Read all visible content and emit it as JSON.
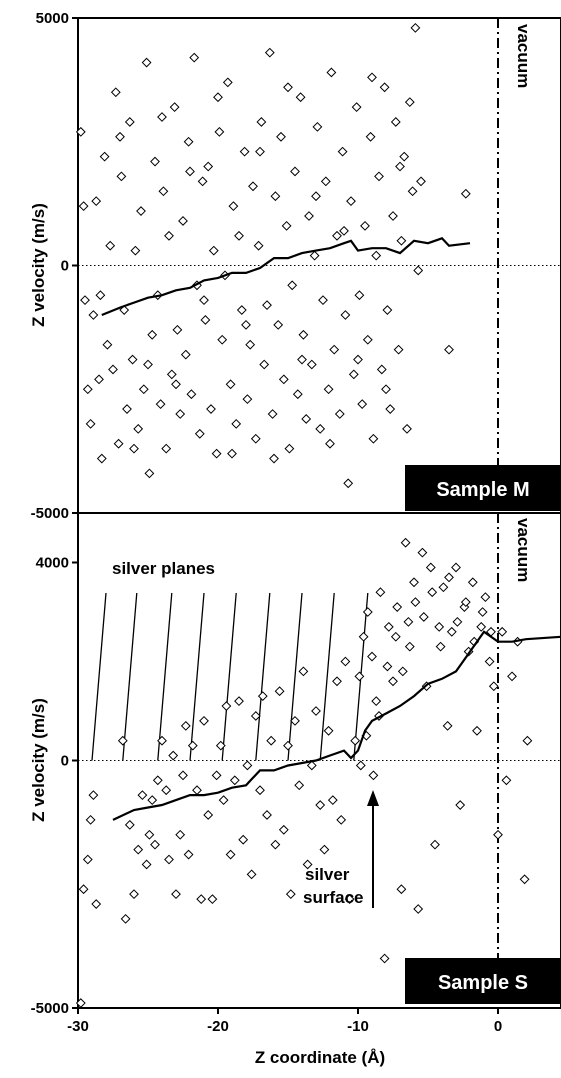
{
  "chart_data": [
    {
      "id": "sample-m",
      "type": "scatter",
      "xlabel": "",
      "ylabel": "Z velocity (m/s)",
      "xlim": [
        -30,
        4.5
      ],
      "ylim": [
        -5000,
        5000
      ],
      "yticks": [
        5000,
        0,
        -5000
      ],
      "ytick_labels": [
        "5000",
        "0",
        "-5000"
      ],
      "badge": "Sample M",
      "vacuum_label": "vacuum",
      "vacuum_x": 0,
      "scatter_points": [
        [
          -29.8,
          2700
        ],
        [
          -29.6,
          1200
        ],
        [
          -29.5,
          -700
        ],
        [
          -29.3,
          -2500
        ],
        [
          -29.1,
          -3200
        ],
        [
          -28.9,
          -1000
        ],
        [
          -28.7,
          1300
        ],
        [
          -28.5,
          -2300
        ],
        [
          -28.3,
          -3900
        ],
        [
          -28.1,
          2200
        ],
        [
          -27.9,
          -1600
        ],
        [
          -27.7,
          400
        ],
        [
          -27.5,
          -2100
        ],
        [
          -27.3,
          3500
        ],
        [
          -27.1,
          -3600
        ],
        [
          -26.9,
          1800
        ],
        [
          -26.7,
          -900
        ],
        [
          -26.5,
          -2900
        ],
        [
          -26.3,
          2900
        ],
        [
          -26.1,
          -1900
        ],
        [
          -25.9,
          300
        ],
        [
          -25.7,
          -3300
        ],
        [
          -25.5,
          1100
        ],
        [
          -25.3,
          -2500
        ],
        [
          -25.1,
          4100
        ],
        [
          -24.9,
          -4200
        ],
        [
          -24.7,
          -1400
        ],
        [
          -24.5,
          2100
        ],
        [
          -24.3,
          -600
        ],
        [
          -24.1,
          -2800
        ],
        [
          -23.9,
          1500
        ],
        [
          -23.7,
          -3700
        ],
        [
          -23.5,
          600
        ],
        [
          -23.3,
          -2200
        ],
        [
          -23.1,
          3200
        ],
        [
          -22.9,
          -1300
        ],
        [
          -22.7,
          -3000
        ],
        [
          -22.5,
          900
        ],
        [
          -22.3,
          -1800
        ],
        [
          -22.1,
          2500
        ],
        [
          -21.9,
          -2600
        ],
        [
          -21.7,
          4200
        ],
        [
          -21.5,
          -400
        ],
        [
          -21.3,
          -3400
        ],
        [
          -21.1,
          1700
        ],
        [
          -20.9,
          -1100
        ],
        [
          -20.7,
          2000
        ],
        [
          -20.5,
          -2900
        ],
        [
          -20.3,
          300
        ],
        [
          -20.1,
          -3800
        ],
        [
          -19.9,
          2700
        ],
        [
          -19.7,
          -1500
        ],
        [
          -19.5,
          -200
        ],
        [
          -19.3,
          3700
        ],
        [
          -19.1,
          -2400
        ],
        [
          -18.9,
          1200
        ],
        [
          -18.7,
          -3200
        ],
        [
          -18.5,
          600
        ],
        [
          -18.3,
          -900
        ],
        [
          -18.1,
          2300
        ],
        [
          -17.9,
          -2700
        ],
        [
          -17.7,
          -1600
        ],
        [
          -17.5,
          1600
        ],
        [
          -17.3,
          -3500
        ],
        [
          -17.1,
          400
        ],
        [
          -16.9,
          2900
        ],
        [
          -16.7,
          -2000
        ],
        [
          -16.5,
          -800
        ],
        [
          -16.3,
          4300
        ],
        [
          -16.1,
          -3000
        ],
        [
          -15.9,
          1400
        ],
        [
          -15.7,
          -1200
        ],
        [
          -15.5,
          2600
        ],
        [
          -15.3,
          -2300
        ],
        [
          -15.1,
          800
        ],
        [
          -14.9,
          -3700
        ],
        [
          -14.7,
          -400
        ],
        [
          -14.5,
          1900
        ],
        [
          -14.3,
          -2600
        ],
        [
          -14.1,
          3400
        ],
        [
          -13.9,
          -1400
        ],
        [
          -13.7,
          -3100
        ],
        [
          -13.5,
          1000
        ],
        [
          -13.3,
          -2000
        ],
        [
          -13.1,
          200
        ],
        [
          -12.9,
          2800
        ],
        [
          -12.7,
          -3300
        ],
        [
          -12.5,
          -700
        ],
        [
          -12.3,
          1700
        ],
        [
          -12.1,
          -2500
        ],
        [
          -11.9,
          3900
        ],
        [
          -11.7,
          -1700
        ],
        [
          -11.5,
          600
        ],
        [
          -11.3,
          -3000
        ],
        [
          -11.1,
          2300
        ],
        [
          -10.9,
          -1000
        ],
        [
          -10.7,
          -4400
        ],
        [
          -10.5,
          1300
        ],
        [
          -10.3,
          -2200
        ],
        [
          -10.1,
          3200
        ],
        [
          -9.9,
          -600
        ],
        [
          -9.7,
          -2800
        ],
        [
          -9.5,
          800
        ],
        [
          -9.3,
          -1500
        ],
        [
          -9.1,
          2600
        ],
        [
          -8.9,
          -3500
        ],
        [
          -8.7,
          200
        ],
        [
          -8.5,
          1800
        ],
        [
          -8.3,
          -2100
        ],
        [
          -8.1,
          3600
        ],
        [
          -7.9,
          -900
        ],
        [
          -7.7,
          -2900
        ],
        [
          -7.5,
          1000
        ],
        [
          -7.3,
          2900
        ],
        [
          -7.1,
          -1700
        ],
        [
          -6.9,
          500
        ],
        [
          -6.7,
          2200
        ],
        [
          -6.5,
          -3300
        ],
        [
          -6.3,
          3300
        ],
        [
          -6.1,
          1500
        ],
        [
          -5.9,
          4800
        ],
        [
          -5.7,
          -100
        ],
        [
          -5.5,
          1700
        ],
        [
          -3.5,
          -1700
        ],
        [
          -2.3,
          1450
        ],
        [
          -28.4,
          -600
        ],
        [
          -27.0,
          2600
        ],
        [
          -26.0,
          -3700
        ],
        [
          -25.0,
          -2000
        ],
        [
          -24.0,
          3000
        ],
        [
          -23.0,
          -2400
        ],
        [
          -22.0,
          1900
        ],
        [
          -21.0,
          -700
        ],
        [
          -20.0,
          3400
        ],
        [
          -19.0,
          -3800
        ],
        [
          -18.0,
          -1200
        ],
        [
          -17.0,
          2300
        ],
        [
          -16.0,
          -3900
        ],
        [
          -15.0,
          3600
        ],
        [
          -14.0,
          -1900
        ],
        [
          -13.0,
          1400
        ],
        [
          -12.0,
          -3600
        ],
        [
          -11.0,
          700
        ],
        [
          -10.0,
          -1900
        ],
        [
          -9.0,
          3800
        ],
        [
          -8.0,
          -2500
        ],
        [
          -7.0,
          2000
        ]
      ],
      "avg_line": [
        [
          -28.3,
          -1000
        ],
        [
          -27.0,
          -850
        ],
        [
          -26.0,
          -750
        ],
        [
          -25.0,
          -650
        ],
        [
          -24.0,
          -600
        ],
        [
          -23.0,
          -500
        ],
        [
          -22.0,
          -450
        ],
        [
          -21.0,
          -300
        ],
        [
          -20.0,
          -250
        ],
        [
          -19.0,
          -150
        ],
        [
          -18.0,
          -150
        ],
        [
          -17.0,
          -50
        ],
        [
          -16.0,
          150
        ],
        [
          -15.0,
          150
        ],
        [
          -14.0,
          250
        ],
        [
          -13.0,
          300
        ],
        [
          -12.0,
          350
        ],
        [
          -11.0,
          450
        ],
        [
          -10.5,
          500
        ],
        [
          -10.0,
          300
        ],
        [
          -9.0,
          350
        ],
        [
          -8.0,
          350
        ],
        [
          -7.0,
          250
        ],
        [
          -6.0,
          500
        ],
        [
          -5.0,
          450
        ],
        [
          -4.0,
          550
        ],
        [
          -3.5,
          400
        ],
        [
          -2.0,
          450
        ]
      ]
    },
    {
      "id": "sample-s",
      "type": "scatter",
      "xlabel": "Z coordinate (Å)",
      "ylabel": "Z velocity (m/s)",
      "xlim": [
        -30,
        4.5
      ],
      "ylim": [
        -5000,
        5000
      ],
      "xticks": [
        -30,
        -20,
        -10,
        0
      ],
      "xtick_labels": [
        "-30",
        "-20",
        "-10",
        "0"
      ],
      "yticks": [
        4000,
        0,
        -5000
      ],
      "ytick_labels": [
        "4000",
        "0",
        "-5000"
      ],
      "badge": "Sample S",
      "vacuum_label": "vacuum",
      "vacuum_x": 0,
      "annotation_planes": "silver planes",
      "annotation_surface_line1": "silver",
      "annotation_surface_line2": "surface",
      "plane_positions": [
        -29,
        -26.8,
        -24.3,
        -22,
        -19.7,
        -17.3,
        -15,
        -12.7,
        -10.3
      ],
      "scatter_points": [
        [
          -29.8,
          -4900
        ],
        [
          -29.6,
          -2600
        ],
        [
          -29.3,
          -2000
        ],
        [
          -29.1,
          -1200
        ],
        [
          -28.9,
          -700
        ],
        [
          -28.7,
          -2900
        ],
        [
          -26.8,
          400
        ],
        [
          -26.6,
          -3200
        ],
        [
          -26.3,
          -1300
        ],
        [
          -26.0,
          -2700
        ],
        [
          -25.7,
          -1800
        ],
        [
          -25.4,
          -700
        ],
        [
          -25.1,
          -2100
        ],
        [
          -24.9,
          -1500
        ],
        [
          -24.7,
          -800
        ],
        [
          -24.5,
          -1700
        ],
        [
          -24.3,
          -400
        ],
        [
          -24.0,
          400
        ],
        [
          -23.7,
          -600
        ],
        [
          -23.5,
          -2000
        ],
        [
          -23.2,
          100
        ],
        [
          -23.0,
          -2700
        ],
        [
          -22.7,
          -1500
        ],
        [
          -22.5,
          -300
        ],
        [
          -22.3,
          700
        ],
        [
          -22.1,
          -1900
        ],
        [
          -21.8,
          300
        ],
        [
          -21.5,
          -600
        ],
        [
          -21.2,
          -2800
        ],
        [
          -21.0,
          800
        ],
        [
          -20.7,
          -1100
        ],
        [
          -20.4,
          -2800
        ],
        [
          -20.1,
          -300
        ],
        [
          -19.8,
          300
        ],
        [
          -19.6,
          -800
        ],
        [
          -19.4,
          1100
        ],
        [
          -19.1,
          -1900
        ],
        [
          -18.8,
          -400
        ],
        [
          -18.5,
          1200
        ],
        [
          -18.2,
          -1600
        ],
        [
          -17.9,
          -100
        ],
        [
          -17.6,
          -2300
        ],
        [
          -17.3,
          900
        ],
        [
          -17.0,
          -600
        ],
        [
          -16.8,
          1300
        ],
        [
          -16.5,
          -1100
        ],
        [
          -16.2,
          400
        ],
        [
          -15.9,
          -1700
        ],
        [
          -15.6,
          1400
        ],
        [
          -15.3,
          -1400
        ],
        [
          -15.0,
          300
        ],
        [
          -14.8,
          -2700
        ],
        [
          -14.5,
          800
        ],
        [
          -14.2,
          -500
        ],
        [
          -13.9,
          1800
        ],
        [
          -13.6,
          -2100
        ],
        [
          -13.3,
          -100
        ],
        [
          -13.0,
          1000
        ],
        [
          -12.7,
          -900
        ],
        [
          -12.4,
          -1800
        ],
        [
          -12.1,
          600
        ],
        [
          -11.8,
          -800
        ],
        [
          -11.5,
          1600
        ],
        [
          -11.2,
          -1200
        ],
        [
          -10.9,
          2000
        ],
        [
          -10.6,
          -2800
        ],
        [
          -10.2,
          400
        ],
        [
          -9.9,
          1700
        ],
        [
          -9.6,
          2500
        ],
        [
          -9.3,
          3000
        ],
        [
          -9.0,
          2100
        ],
        [
          -8.7,
          1200
        ],
        [
          -8.4,
          3400
        ],
        [
          -8.1,
          -4000
        ],
        [
          -7.8,
          2700
        ],
        [
          -7.5,
          1600
        ],
        [
          -7.2,
          3100
        ],
        [
          -6.9,
          -2600
        ],
        [
          -6.6,
          4400
        ],
        [
          -6.3,
          2300
        ],
        [
          -6.0,
          3600
        ],
        [
          -5.7,
          -3000
        ],
        [
          -5.4,
          4200
        ],
        [
          -5.1,
          1500
        ],
        [
          -4.8,
          3900
        ],
        [
          -4.5,
          -1700
        ],
        [
          -4.2,
          2700
        ],
        [
          -3.9,
          3500
        ],
        [
          -3.6,
          700
        ],
        [
          -3.3,
          2600
        ],
        [
          -3.0,
          3900
        ],
        [
          -2.7,
          -900
        ],
        [
          -2.4,
          3100
        ],
        [
          -2.1,
          2200
        ],
        [
          -1.8,
          3600
        ],
        [
          -1.5,
          600
        ],
        [
          -1.2,
          2700
        ],
        [
          -0.9,
          3300
        ],
        [
          -0.6,
          2000
        ],
        [
          -0.3,
          1500
        ],
        [
          0.0,
          -1500
        ],
        [
          0.3,
          2600
        ],
        [
          0.6,
          -400
        ],
        [
          1.0,
          1700
        ],
        [
          1.4,
          2400
        ],
        [
          1.9,
          -2400
        ],
        [
          2.1,
          400
        ],
        [
          -9.8,
          -100
        ],
        [
          -9.4,
          500
        ],
        [
          -8.9,
          -300
        ],
        [
          -8.5,
          900
        ],
        [
          -7.9,
          1900
        ],
        [
          -7.3,
          2500
        ],
        [
          -6.8,
          1800
        ],
        [
          -6.4,
          2800
        ],
        [
          -5.9,
          3200
        ],
        [
          -5.3,
          2900
        ],
        [
          -4.7,
          3400
        ],
        [
          -4.1,
          2300
        ],
        [
          -3.5,
          3700
        ],
        [
          -2.9,
          2800
        ],
        [
          -2.3,
          3200
        ],
        [
          -1.7,
          2400
        ],
        [
          -1.1,
          3000
        ],
        [
          -0.5,
          2600
        ]
      ],
      "avg_line": [
        [
          -27.5,
          -1200
        ],
        [
          -26.0,
          -1000
        ],
        [
          -25.0,
          -950
        ],
        [
          -24.0,
          -900
        ],
        [
          -23.0,
          -800
        ],
        [
          -22.0,
          -700
        ],
        [
          -21.0,
          -700
        ],
        [
          -20.0,
          -650
        ],
        [
          -19.0,
          -550
        ],
        [
          -18.0,
          -500
        ],
        [
          -17.5,
          -350
        ],
        [
          -17.0,
          -200
        ],
        [
          -16.0,
          -200
        ],
        [
          -15.0,
          -100
        ],
        [
          -14.0,
          -50
        ],
        [
          -13.0,
          0
        ],
        [
          -12.0,
          100
        ],
        [
          -11.0,
          200
        ],
        [
          -10.5,
          50
        ],
        [
          -10.0,
          200
        ],
        [
          -9.5,
          600
        ],
        [
          -9.0,
          800
        ],
        [
          -8.0,
          950
        ],
        [
          -7.0,
          1100
        ],
        [
          -6.0,
          1300
        ],
        [
          -5.0,
          1550
        ],
        [
          -4.0,
          1650
        ],
        [
          -3.0,
          1800
        ],
        [
          -2.0,
          2200
        ],
        [
          -1.0,
          2600
        ],
        [
          0.0,
          2400
        ],
        [
          1.0,
          2400
        ],
        [
          2.0,
          2450
        ],
        [
          4.5,
          2500
        ]
      ]
    }
  ]
}
